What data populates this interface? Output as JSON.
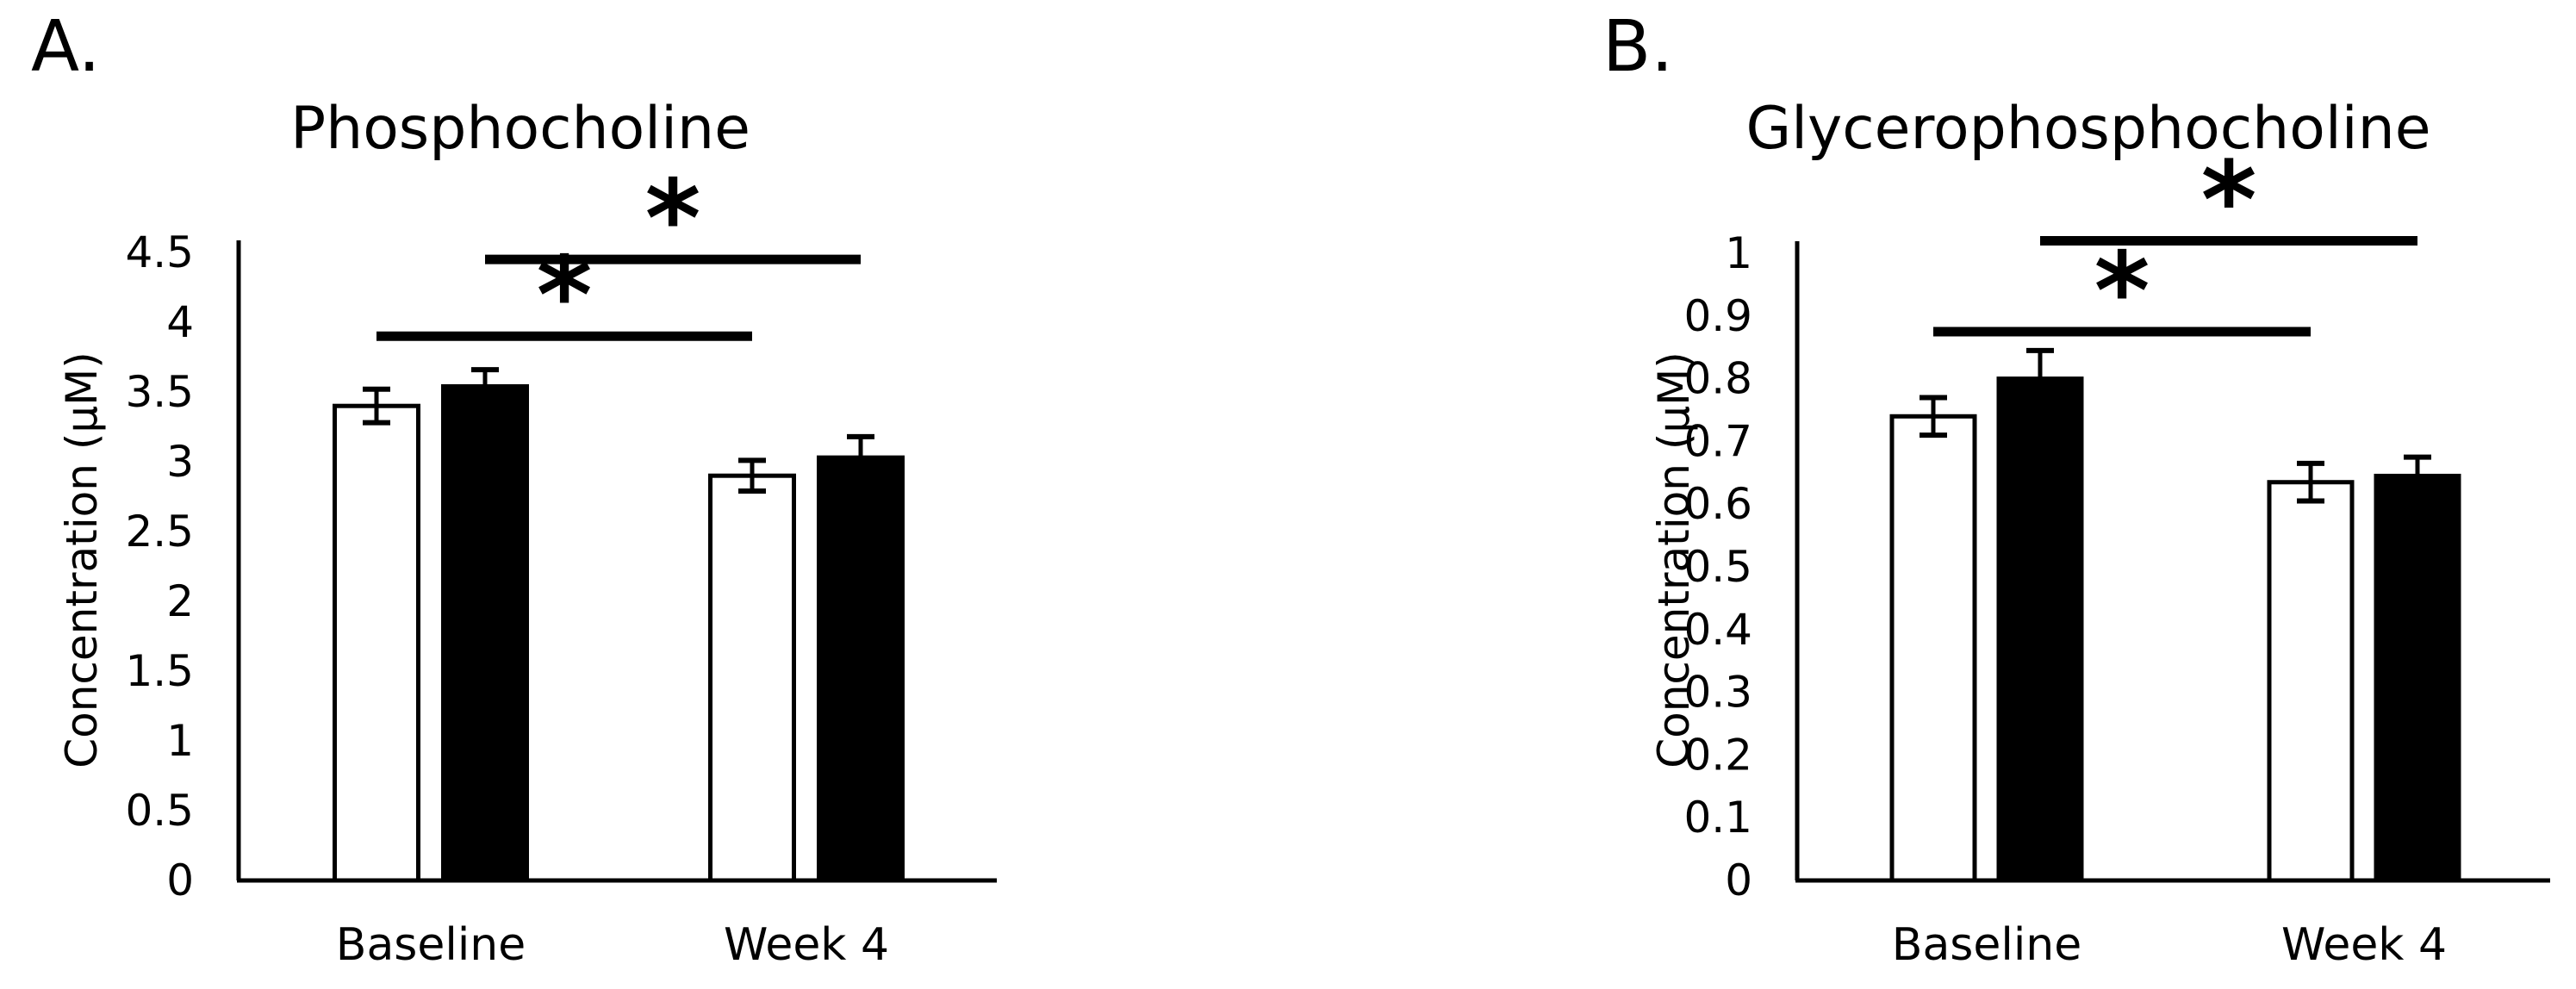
{
  "colors": {
    "foreground": "#000000",
    "background": "#ffffff"
  },
  "chart_data": [
    {
      "type": "bar",
      "panel_label": "A.",
      "title": "Phosphocholine",
      "xlabel": "",
      "ylabel": "Concentration (µM)",
      "categories": [
        "Baseline",
        "Week 4"
      ],
      "series": [
        {
          "name": "open-bars",
          "fill": "#ffffff",
          "values": [
            3.4,
            2.9
          ],
          "errors": [
            0.12,
            0.11
          ]
        },
        {
          "name": "filled-bars",
          "fill": "#000000",
          "values": [
            3.54,
            3.03
          ],
          "errors": [
            0.12,
            0.15
          ]
        }
      ],
      "ylim": [
        0,
        4.5
      ],
      "ytick_interval": 0.5,
      "ytick_labels": [
        "0",
        "0.5",
        "1",
        "1.5",
        "2",
        "2.5",
        "3",
        "3.5",
        "4",
        "4.5"
      ],
      "grid": false,
      "legend": "none",
      "significance_markers": [
        {
          "compare_series": 0,
          "between": [
            "Baseline",
            "Week 4"
          ],
          "y_value": 3.9,
          "label": "*"
        },
        {
          "compare_series": 1,
          "between": [
            "Baseline",
            "Week 4"
          ],
          "y_value": 4.45,
          "label": "*"
        }
      ]
    },
    {
      "type": "bar",
      "panel_label": "B.",
      "title": "Glycerophosphocholine",
      "xlabel": "",
      "ylabel": "Concentration (µM)",
      "categories": [
        "Baseline",
        "Week 4"
      ],
      "series": [
        {
          "name": "open-bars",
          "fill": "#ffffff",
          "values": [
            0.74,
            0.635
          ],
          "errors": [
            0.03,
            0.03
          ]
        },
        {
          "name": "filled-bars",
          "fill": "#000000",
          "values": [
            0.8,
            0.645
          ],
          "errors": [
            0.045,
            0.03
          ]
        }
      ],
      "ylim": [
        0,
        1
      ],
      "ytick_interval": 0.1,
      "ytick_labels": [
        "0",
        "0.1",
        "0.2",
        "0.3",
        "0.4",
        "0.5",
        "0.6",
        "0.7",
        "0.8",
        "0.9",
        "1"
      ],
      "grid": false,
      "legend": "none",
      "significance_markers": [
        {
          "compare_series": 0,
          "between": [
            "Baseline",
            "Week 4"
          ],
          "y_value": 0.875,
          "label": "*"
        },
        {
          "compare_series": 1,
          "between": [
            "Baseline",
            "Week 4"
          ],
          "y_value": 1.02,
          "label": "*"
        }
      ]
    }
  ]
}
